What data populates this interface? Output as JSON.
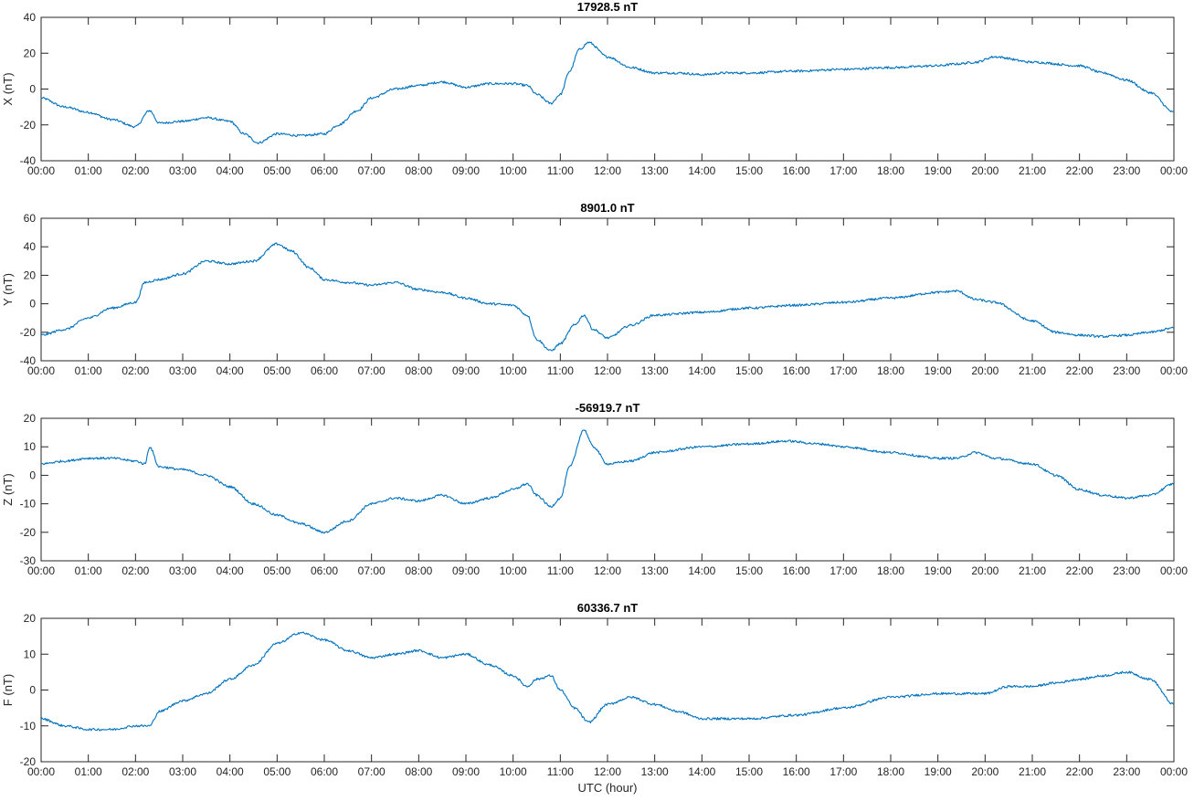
{
  "chart_data": [
    {
      "type": "line",
      "title": "17928.5 nT",
      "ylabel": "X (nT)",
      "xlabel": "",
      "ylim": [
        -40,
        40
      ],
      "yticks": [
        -40,
        -20,
        0,
        20,
        40
      ],
      "xticks": [
        "00:00",
        "01:00",
        "02:00",
        "03:00",
        "04:00",
        "05:00",
        "06:00",
        "07:00",
        "08:00",
        "09:00",
        "10:00",
        "11:00",
        "12:00",
        "13:00",
        "14:00",
        "15:00",
        "16:00",
        "17:00",
        "18:00",
        "19:00",
        "20:00",
        "21:00",
        "22:00",
        "23:00",
        "00:00"
      ],
      "grid": false,
      "series": [
        {
          "color": "#0072bd",
          "x": [
            0,
            0.5,
            1,
            1.5,
            2,
            2.3,
            2.5,
            3,
            3.5,
            4,
            4.3,
            4.6,
            5,
            5.5,
            6,
            6.3,
            6.7,
            7,
            7.5,
            8,
            8.5,
            9,
            9.5,
            10,
            10.3,
            10.5,
            10.8,
            11,
            11.2,
            11.4,
            11.6,
            12,
            12.5,
            13,
            13.5,
            14,
            14.5,
            15,
            16,
            17,
            18,
            19,
            19.4,
            19.8,
            20.2,
            21,
            22,
            22.5,
            23,
            23.5,
            24
          ],
          "y": [
            -5,
            -10,
            -13,
            -17,
            -21,
            -12,
            -19,
            -18,
            -16,
            -18,
            -25,
            -30,
            -25,
            -26,
            -25,
            -20,
            -12,
            -5,
            0,
            2,
            4,
            1,
            3,
            3,
            2,
            -3,
            -8,
            -3,
            10,
            22,
            26,
            18,
            12,
            9,
            9,
            8,
            9,
            9,
            10,
            11,
            12,
            13,
            14,
            15,
            18,
            15,
            13,
            9,
            5,
            -2,
            -13
          ]
        }
      ]
    },
    {
      "type": "line",
      "title": "8901.0 nT",
      "ylabel": "Y (nT)",
      "xlabel": "",
      "ylim": [
        -40,
        60
      ],
      "yticks": [
        -40,
        -20,
        0,
        20,
        40,
        60
      ],
      "xticks": [
        "00:00",
        "01:00",
        "02:00",
        "03:00",
        "04:00",
        "05:00",
        "06:00",
        "07:00",
        "08:00",
        "09:00",
        "10:00",
        "11:00",
        "12:00",
        "13:00",
        "14:00",
        "15:00",
        "16:00",
        "17:00",
        "18:00",
        "19:00",
        "20:00",
        "21:00",
        "22:00",
        "23:00",
        "00:00"
      ],
      "grid": false,
      "series": [
        {
          "color": "#0072bd",
          "x": [
            0,
            0.5,
            1,
            1.5,
            2,
            2.2,
            2.5,
            3,
            3.5,
            4,
            4.5,
            5,
            5.3,
            5.7,
            6,
            6.5,
            7,
            7.5,
            8,
            8.5,
            9,
            9.5,
            10,
            10.3,
            10.5,
            10.8,
            11,
            11.3,
            11.5,
            11.7,
            12,
            12.5,
            13,
            14,
            15,
            16,
            17,
            18,
            19,
            19.4,
            19.8,
            20.2,
            21,
            21.5,
            22,
            22.5,
            23,
            23.5,
            24
          ],
          "y": [
            -22,
            -18,
            -10,
            -3,
            1,
            15,
            17,
            21,
            30,
            28,
            30,
            42,
            37,
            25,
            17,
            15,
            13,
            15,
            10,
            8,
            4,
            0,
            -1,
            -8,
            -25,
            -33,
            -28,
            -15,
            -8,
            -18,
            -24,
            -15,
            -8,
            -6,
            -3,
            -1,
            1,
            4,
            8,
            9,
            3,
            1,
            -12,
            -20,
            -22,
            -23,
            -22,
            -20,
            -17
          ]
        }
      ]
    },
    {
      "type": "line",
      "title": "-56919.7 nT",
      "ylabel": "Z (nT)",
      "xlabel": "",
      "ylim": [
        -30,
        20
      ],
      "yticks": [
        -30,
        -20,
        -10,
        0,
        10,
        20
      ],
      "xticks": [
        "00:00",
        "01:00",
        "02:00",
        "03:00",
        "04:00",
        "05:00",
        "06:00",
        "07:00",
        "08:00",
        "09:00",
        "10:00",
        "11:00",
        "12:00",
        "13:00",
        "14:00",
        "15:00",
        "16:00",
        "17:00",
        "18:00",
        "19:00",
        "20:00",
        "21:00",
        "22:00",
        "23:00",
        "00:00"
      ],
      "grid": false,
      "series": [
        {
          "color": "#0072bd",
          "x": [
            0,
            0.5,
            1,
            1.5,
            2,
            2.2,
            2.3,
            2.5,
            3,
            3.5,
            4,
            4.5,
            5,
            5.5,
            6,
            6.5,
            7,
            7.5,
            8,
            8.5,
            9,
            9.5,
            10,
            10.3,
            10.5,
            10.8,
            11,
            11.2,
            11.5,
            11.7,
            12,
            12.5,
            13,
            14,
            15,
            15.8,
            16.5,
            17,
            18,
            19,
            19.4,
            19.8,
            20.2,
            21,
            21.5,
            22,
            22.5,
            23,
            23.5,
            24
          ],
          "y": [
            4,
            5,
            6,
            6,
            5,
            4,
            10,
            3,
            2,
            0,
            -4,
            -10,
            -14,
            -17,
            -20,
            -16,
            -10,
            -8,
            -9,
            -7,
            -10,
            -8,
            -5,
            -3,
            -7,
            -11,
            -8,
            3,
            16,
            10,
            4,
            5,
            8,
            10,
            11,
            12,
            11,
            10,
            8,
            6,
            6,
            8,
            6,
            4,
            0,
            -5,
            -7,
            -8,
            -7,
            -3
          ]
        }
      ]
    },
    {
      "type": "line",
      "title": "60336.7 nT",
      "ylabel": "F (nT)",
      "xlabel": "UTC (hour)",
      "ylim": [
        -20,
        20
      ],
      "yticks": [
        -20,
        -10,
        0,
        10,
        20
      ],
      "xticks": [
        "00:00",
        "01:00",
        "02:00",
        "03:00",
        "04:00",
        "05:00",
        "06:00",
        "07:00",
        "08:00",
        "09:00",
        "10:00",
        "11:00",
        "12:00",
        "13:00",
        "14:00",
        "15:00",
        "16:00",
        "17:00",
        "18:00",
        "19:00",
        "20:00",
        "21:00",
        "22:00",
        "23:00",
        "00:00"
      ],
      "grid": false,
      "series": [
        {
          "color": "#0072bd",
          "x": [
            0,
            0.5,
            1,
            1.5,
            2,
            2.3,
            2.5,
            3,
            3.5,
            4,
            4.5,
            5,
            5.5,
            6,
            6.5,
            7,
            7.5,
            8,
            8.5,
            9,
            9.5,
            10,
            10.3,
            10.5,
            10.8,
            11,
            11.3,
            11.6,
            12,
            12.5,
            13,
            13.5,
            14,
            14.5,
            15,
            16,
            17,
            18,
            19,
            19.5,
            20,
            20.5,
            21,
            21.5,
            22,
            22.5,
            23,
            23.5,
            24
          ],
          "y": [
            -8,
            -10,
            -11,
            -11,
            -10,
            -10,
            -6,
            -3,
            -1,
            3,
            7,
            13,
            16,
            14,
            11,
            9,
            10,
            11,
            9,
            10,
            7,
            4,
            1,
            3,
            4,
            0,
            -5,
            -9,
            -4,
            -2,
            -4,
            -6,
            -8,
            -8,
            -8,
            -7,
            -5,
            -2,
            -1,
            -1,
            -1,
            1,
            1,
            2,
            3,
            4,
            5,
            3,
            -4
          ]
        }
      ]
    }
  ]
}
